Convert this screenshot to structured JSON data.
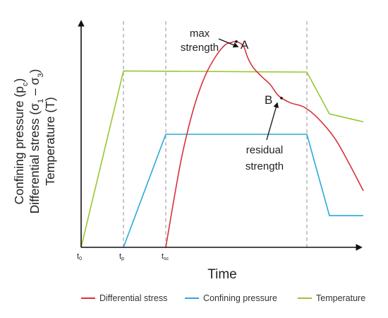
{
  "chart_data": {
    "type": "line",
    "title": "",
    "xlabel": "Time",
    "ylabel_lines": [
      "Confining pressure (p",
      "Differential stress (σ",
      "Temperature (T)"
    ],
    "ylabel_subs": {
      "pc": "c",
      "s1": "1",
      "minus": " – σ",
      "s3": "3",
      "close": ")"
    },
    "xlim": [
      0,
      100
    ],
    "ylim": [
      0,
      100
    ],
    "x_ticks": [
      {
        "main": "t",
        "sub": "0",
        "x": 0
      },
      {
        "main": "t",
        "sub": "p",
        "x": 15
      },
      {
        "main": "t",
        "sub": "sc",
        "x": 30
      }
    ],
    "dashed_x": [
      15,
      30,
      80
    ],
    "series": [
      {
        "name": "Differential stress",
        "color": "#d9303c",
        "smooth": true,
        "points": [
          [
            30,
            0
          ],
          [
            33,
            22
          ],
          [
            36,
            42
          ],
          [
            40,
            62
          ],
          [
            44,
            76
          ],
          [
            48,
            85
          ],
          [
            51,
            89.5
          ],
          [
            53,
            90.5
          ],
          [
            55,
            91
          ],
          [
            57.5,
            89
          ],
          [
            59,
            84
          ],
          [
            61,
            79.5
          ],
          [
            64,
            75.5
          ],
          [
            67,
            72
          ],
          [
            70,
            67
          ],
          [
            74,
            64
          ],
          [
            79,
            62
          ],
          [
            84,
            57
          ],
          [
            90,
            48
          ],
          [
            95,
            37
          ],
          [
            100,
            25
          ]
        ]
      },
      {
        "name": "Confining pressure",
        "color": "#2aa9db",
        "smooth": false,
        "points": [
          [
            15,
            0
          ],
          [
            30,
            50
          ],
          [
            80,
            50
          ],
          [
            88,
            14
          ],
          [
            100,
            14
          ]
        ]
      },
      {
        "name": "Temperature",
        "color": "#99c633",
        "smooth": false,
        "points": [
          [
            0,
            0
          ],
          [
            15,
            78
          ],
          [
            80,
            77.5
          ],
          [
            88,
            59
          ],
          [
            100,
            55.5
          ]
        ]
      }
    ],
    "annotations": [
      {
        "label": "A",
        "x": 55,
        "y": 91
      },
      {
        "label": "B",
        "x": 71,
        "y": 66
      }
    ],
    "notes": {
      "max": [
        "max",
        "strength"
      ],
      "residual": [
        "residual",
        "strength"
      ]
    },
    "grid": false,
    "legend_position": "bottom"
  }
}
